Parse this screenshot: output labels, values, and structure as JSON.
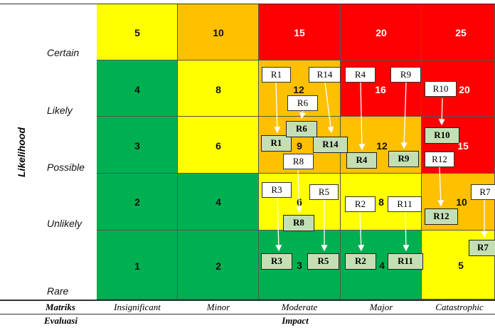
{
  "axes": {
    "y_title": "Likelihood",
    "x_title": "Impact",
    "rows": [
      "Certain",
      "Likely",
      "Possible",
      "Unlikely",
      "Rare"
    ],
    "columns": [
      "Insignificant",
      "Minor",
      "Moderate",
      "Major",
      "Catastrophic"
    ]
  },
  "footer": {
    "line1": "Matriks",
    "line2": "Evaluasi"
  },
  "colors": {
    "green": "#00b050",
    "yellow": "#ffff00",
    "orange": "#ffc000",
    "red": "#ff0000",
    "risk_box": "#c5dfb4"
  },
  "matrix": [
    [
      {
        "v": "5",
        "c": "yellow"
      },
      {
        "v": "10",
        "c": "orange"
      },
      {
        "v": "15",
        "c": "red"
      },
      {
        "v": "20",
        "c": "red"
      },
      {
        "v": "25",
        "c": "red"
      }
    ],
    [
      {
        "v": "4",
        "c": "green"
      },
      {
        "v": "8",
        "c": "yellow"
      },
      {
        "v": "12",
        "c": "orange"
      },
      {
        "v": "16",
        "c": "red"
      },
      {
        "v": "20",
        "c": "red"
      }
    ],
    [
      {
        "v": "3",
        "c": "green"
      },
      {
        "v": "6",
        "c": "yellow"
      },
      {
        "v": "9",
        "c": "orange"
      },
      {
        "v": "12",
        "c": "orange"
      },
      {
        "v": "15",
        "c": "red"
      }
    ],
    [
      {
        "v": "2",
        "c": "green"
      },
      {
        "v": "4",
        "c": "green"
      },
      {
        "v": "6",
        "c": "yellow"
      },
      {
        "v": "8",
        "c": "yellow"
      },
      {
        "v": "10",
        "c": "orange"
      }
    ],
    [
      {
        "v": "1",
        "c": "green"
      },
      {
        "v": "2",
        "c": "green"
      },
      {
        "v": "3",
        "c": "green"
      },
      {
        "v": "4",
        "c": "green"
      },
      {
        "v": "5",
        "c": "yellow"
      }
    ]
  ],
  "risks": [
    "R1",
    "R2",
    "R3",
    "R4",
    "R5",
    "R6",
    "R7",
    "R8",
    "R9",
    "R10",
    "R11",
    "R12",
    "R14"
  ]
}
